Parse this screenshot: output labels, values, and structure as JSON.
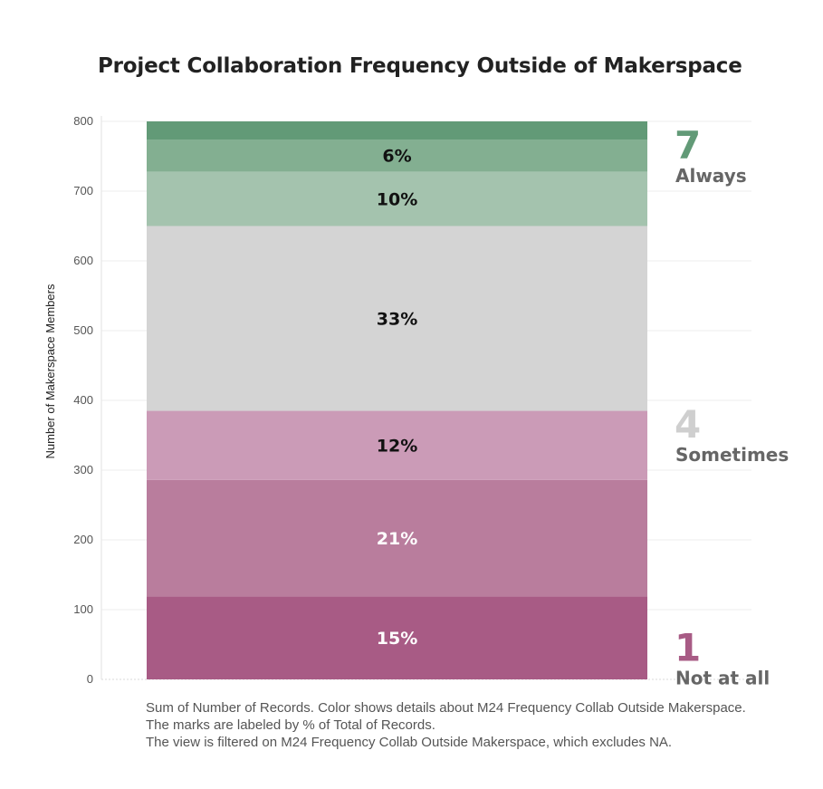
{
  "title": "Project Collaboration Frequency Outside of Makerspace",
  "chart_data": {
    "type": "bar",
    "stacked": true,
    "ylabel": "Number of Makerspace Members",
    "xlabel": "",
    "ylim": [
      0,
      800
    ],
    "yticks": [
      0,
      100,
      200,
      300,
      400,
      500,
      600,
      700,
      800
    ],
    "grid": true,
    "series": [
      {
        "level": "1",
        "value": 119,
        "label": "15%",
        "color": "#a85b85",
        "label_color": "#ffffff"
      },
      {
        "level": "2",
        "value": 167,
        "label": "21%",
        "color": "#b97d9d",
        "label_color": "#ffffff"
      },
      {
        "level": "3",
        "value": 99,
        "label": "12%",
        "color": "#cb9bb7",
        "label_color": "#111111"
      },
      {
        "level": "4",
        "value": 265,
        "label": "33%",
        "color": "#d4d4d4",
        "label_color": "#111111"
      },
      {
        "level": "5",
        "value": 78,
        "label": "10%",
        "color": "#a4c3ae",
        "label_color": "#111111"
      },
      {
        "level": "6",
        "value": 46,
        "label": "6%",
        "color": "#83af91",
        "label_color": "#111111"
      },
      {
        "level": "7",
        "value": 26,
        "label": "",
        "color": "#629a77",
        "label_color": "#111111"
      }
    ],
    "scale_annotations": [
      {
        "number": "7",
        "word": "Always",
        "color": "#629a77",
        "at_value": 800
      },
      {
        "number": "4",
        "word": "Sometimes",
        "color": "#cfcfcf",
        "at_value": 400
      },
      {
        "number": "1",
        "word": "Not at all",
        "color": "#a85b85",
        "at_value": 80
      }
    ]
  },
  "footnote": {
    "line1": "Sum of Number of Records. Color shows details about M24 Frequency Collab Outside Makerspace.",
    "line2": "The marks are labeled by % of Total of Records.",
    "line3": "The view is filtered on M24 Frequency Collab Outside Makerspace, which excludes NA."
  }
}
